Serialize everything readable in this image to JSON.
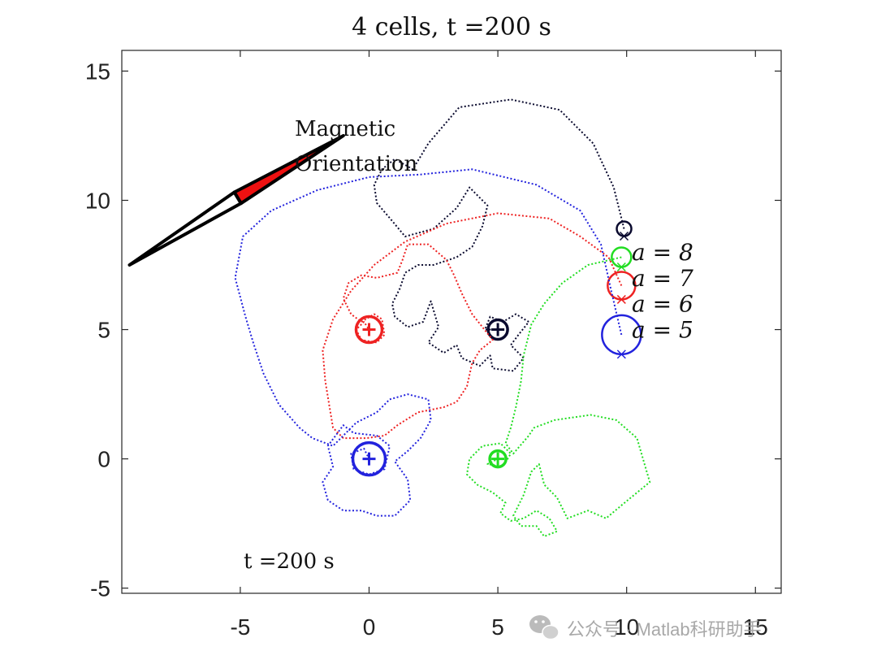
{
  "chart_data": {
    "type": "line",
    "title": "4 cells, t =200 s",
    "xlabel": "",
    "ylabel": "",
    "xlim": [
      -9.6,
      16
    ],
    "ylim": [
      -5.2,
      15.8
    ],
    "xticks": [
      -5,
      0,
      5,
      10,
      15
    ],
    "yticks": [
      -5,
      0,
      5,
      10,
      15
    ],
    "grid": false,
    "box": true,
    "time_label": "t =200 s",
    "annotation": {
      "text_line1": "Magnetic",
      "text_line2": "Orientation",
      "needle": {
        "tail": [
          -9.3,
          7.5
        ],
        "head": [
          -1.0,
          12.5
        ],
        "split": [
          -5.1,
          10.1
        ]
      }
    },
    "series": [
      {
        "name": "a = 8",
        "label": "a = 8",
        "color": "#0a0a2e",
        "start": [
          5,
          5
        ],
        "end": [
          9.9,
          8.9
        ],
        "path": [
          [
            9.9,
            8.9
          ],
          [
            9.5,
            10.5
          ],
          [
            8.7,
            12.2
          ],
          [
            7.4,
            13.5
          ],
          [
            5.5,
            13.9
          ],
          [
            3.5,
            13.6
          ],
          [
            2.3,
            12.2
          ],
          [
            1.7,
            11.2
          ],
          [
            1.0,
            11.6
          ],
          [
            0.5,
            11.2
          ],
          [
            0.2,
            10.6
          ],
          [
            0.3,
            9.9
          ],
          [
            0.9,
            9.2
          ],
          [
            1.4,
            8.6
          ],
          [
            2.5,
            8.9
          ],
          [
            3.4,
            9.7
          ],
          [
            3.9,
            10.5
          ],
          [
            4.6,
            9.8
          ],
          [
            4.4,
            9.0
          ],
          [
            4.0,
            8.2
          ],
          [
            3.4,
            7.8
          ],
          [
            2.5,
            7.5
          ],
          [
            1.9,
            7.5
          ],
          [
            1.4,
            7.2
          ],
          [
            1.2,
            6.6
          ],
          [
            0.9,
            6.0
          ],
          [
            1.0,
            5.5
          ],
          [
            1.5,
            5.1
          ],
          [
            2.1,
            5.3
          ],
          [
            2.4,
            6.1
          ],
          [
            2.7,
            5.1
          ],
          [
            2.3,
            4.5
          ],
          [
            2.9,
            4.1
          ],
          [
            3.4,
            4.4
          ],
          [
            3.6,
            3.9
          ],
          [
            4.3,
            3.6
          ],
          [
            4.7,
            4.0
          ],
          [
            4.8,
            3.5
          ],
          [
            5.6,
            3.4
          ],
          [
            6.0,
            3.9
          ],
          [
            5.5,
            4.4
          ],
          [
            5.8,
            4.8
          ],
          [
            6.2,
            5.3
          ],
          [
            5.7,
            5.6
          ],
          [
            5.2,
            5.3
          ],
          [
            4.7,
            5.5
          ],
          [
            4.5,
            5.0
          ],
          [
            5.0,
            5.0
          ]
        ]
      },
      {
        "name": "a = 7",
        "label": "a = 7",
        "color": "#22dd22",
        "start": [
          5,
          0
        ],
        "end": [
          9.8,
          7.8
        ],
        "path": [
          [
            9.8,
            7.8
          ],
          [
            8.5,
            7.5
          ],
          [
            7.5,
            6.8
          ],
          [
            6.8,
            6.0
          ],
          [
            6.3,
            5.2
          ],
          [
            6.0,
            4.0
          ],
          [
            5.9,
            3.0
          ],
          [
            5.7,
            2.0
          ],
          [
            5.5,
            1.2
          ],
          [
            5.3,
            0.6
          ],
          [
            5.6,
            0.2
          ],
          [
            6.2,
            0.9
          ],
          [
            6.4,
            1.2
          ],
          [
            7.2,
            1.5
          ],
          [
            8.6,
            1.7
          ],
          [
            9.6,
            1.5
          ],
          [
            10.4,
            0.8
          ],
          [
            10.9,
            -0.9
          ],
          [
            9.8,
            -1.8
          ],
          [
            9.2,
            -2.3
          ],
          [
            8.5,
            -2.0
          ],
          [
            7.7,
            -2.3
          ],
          [
            7.3,
            -1.5
          ],
          [
            6.8,
            -1.0
          ],
          [
            6.6,
            -0.2
          ],
          [
            6.3,
            -0.5
          ],
          [
            6.0,
            -1.4
          ],
          [
            5.6,
            -2.2
          ],
          [
            5.9,
            -2.6
          ],
          [
            6.5,
            -2.6
          ],
          [
            6.8,
            -3.0
          ],
          [
            7.3,
            -2.8
          ],
          [
            7.0,
            -2.3
          ],
          [
            6.5,
            -2.0
          ],
          [
            6.0,
            -2.3
          ],
          [
            5.5,
            -2.4
          ],
          [
            5.1,
            -2.1
          ],
          [
            5.3,
            -1.7
          ],
          [
            4.8,
            -1.3
          ],
          [
            4.2,
            -1.0
          ],
          [
            3.8,
            -0.6
          ],
          [
            3.9,
            0.0
          ],
          [
            4.4,
            0.5
          ],
          [
            5.1,
            0.6
          ],
          [
            5.5,
            0.2
          ],
          [
            5.2,
            -0.3
          ],
          [
            4.6,
            -0.2
          ],
          [
            5.0,
            0.0
          ]
        ]
      },
      {
        "name": "a = 6",
        "label": "a = 6",
        "color": "#ee2222",
        "start": [
          0,
          5
        ],
        "end": [
          9.8,
          6.7
        ],
        "path": [
          [
            9.8,
            6.7
          ],
          [
            9.3,
            7.8
          ],
          [
            8.2,
            8.6
          ],
          [
            7.0,
            9.3
          ],
          [
            5.0,
            9.5
          ],
          [
            3.0,
            9.1
          ],
          [
            1.4,
            8.4
          ],
          [
            0.2,
            7.5
          ],
          [
            -0.7,
            6.5
          ],
          [
            -1.4,
            5.4
          ],
          [
            -1.8,
            4.2
          ],
          [
            -1.7,
            3.0
          ],
          [
            -1.5,
            1.8
          ],
          [
            -1.4,
            1.2
          ],
          [
            -1.0,
            0.8
          ],
          [
            -0.1,
            0.8
          ],
          [
            0.6,
            0.9
          ],
          [
            1.1,
            1.3
          ],
          [
            1.9,
            1.8
          ],
          [
            2.9,
            2.0
          ],
          [
            3.4,
            2.2
          ],
          [
            3.8,
            2.8
          ],
          [
            4.0,
            3.7
          ],
          [
            4.3,
            4.2
          ],
          [
            4.8,
            4.6
          ],
          [
            4.4,
            5.1
          ],
          [
            4.0,
            5.6
          ],
          [
            3.6,
            6.4
          ],
          [
            3.3,
            7.1
          ],
          [
            3.0,
            7.7
          ],
          [
            2.3,
            8.3
          ],
          [
            1.5,
            8.3
          ],
          [
            1.3,
            7.7
          ],
          [
            1.1,
            7.2
          ],
          [
            0.3,
            7.0
          ],
          [
            -0.3,
            7.1
          ],
          [
            -0.8,
            6.8
          ],
          [
            -1.0,
            6.2
          ],
          [
            -0.7,
            5.6
          ],
          [
            -0.3,
            5.3
          ],
          [
            0.2,
            5.6
          ],
          [
            0.5,
            5.4
          ],
          [
            0.6,
            4.8
          ],
          [
            0.3,
            4.5
          ],
          [
            -0.3,
            4.6
          ],
          [
            -0.5,
            5.0
          ],
          [
            -0.2,
            5.3
          ],
          [
            0.0,
            5.0
          ]
        ]
      },
      {
        "name": "a = 5",
        "label": "a = 5",
        "color": "#2222dd",
        "start": [
          0,
          0
        ],
        "end": [
          9.8,
          4.8
        ],
        "path": [
          [
            9.8,
            4.8
          ],
          [
            9.4,
            6.5
          ],
          [
            9.0,
            8.3
          ],
          [
            8.2,
            9.6
          ],
          [
            6.5,
            10.6
          ],
          [
            4.0,
            11.2
          ],
          [
            2.0,
            11.0
          ],
          [
            0.0,
            10.9
          ],
          [
            -2.0,
            10.4
          ],
          [
            -3.8,
            9.6
          ],
          [
            -4.9,
            8.6
          ],
          [
            -5.2,
            7.0
          ],
          [
            -4.8,
            5.5
          ],
          [
            -4.5,
            4.5
          ],
          [
            -4.1,
            3.3
          ],
          [
            -3.5,
            2.1
          ],
          [
            -2.7,
            1.2
          ],
          [
            -2.2,
            0.8
          ],
          [
            -1.4,
            0.5
          ],
          [
            -0.5,
            1.4
          ],
          [
            0.3,
            1.8
          ],
          [
            0.8,
            2.3
          ],
          [
            1.5,
            2.5
          ],
          [
            2.3,
            2.3
          ],
          [
            2.4,
            1.5
          ],
          [
            2.0,
            0.8
          ],
          [
            1.5,
            0.3
          ],
          [
            1.0,
            -0.1
          ],
          [
            1.5,
            -0.8
          ],
          [
            1.6,
            -1.6
          ],
          [
            1.0,
            -2.2
          ],
          [
            0.3,
            -2.2
          ],
          [
            -0.3,
            -2.0
          ],
          [
            -1.0,
            -2.0
          ],
          [
            -1.6,
            -1.6
          ],
          [
            -1.8,
            -0.9
          ],
          [
            -1.4,
            -0.3
          ],
          [
            -1.6,
            0.5
          ],
          [
            -1.0,
            1.3
          ],
          [
            -0.6,
            1.0
          ],
          [
            0.3,
            0.9
          ],
          [
            0.8,
            0.5
          ],
          [
            0.6,
            -0.4
          ],
          [
            0.0,
            -0.6
          ],
          [
            -0.6,
            -0.4
          ],
          [
            -0.7,
            0.2
          ],
          [
            -0.2,
            0.4
          ],
          [
            0.0,
            0.0
          ]
        ]
      }
    ]
  },
  "watermark": "公众号 · Matlab科研助手"
}
